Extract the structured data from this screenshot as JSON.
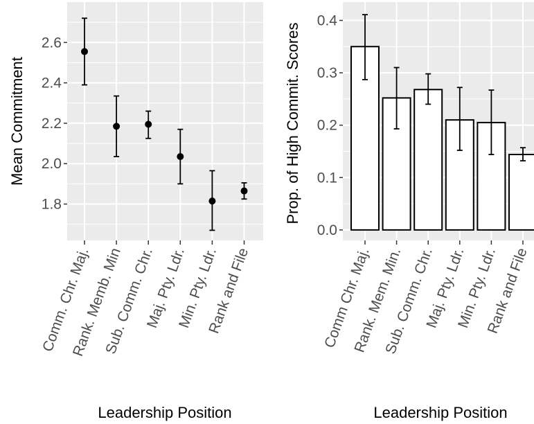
{
  "chart_data": [
    {
      "type": "scatter",
      "xlabel": "Leadership Position",
      "ylabel": "Mean Commitment",
      "categories": [
        "Comm. Chr. Maj.",
        "Rank. Memb. Min",
        "Sub. Comm. Chr.",
        "Maj. Pty. Ldr.",
        "Min. Pty. Ldr.",
        "Rank and File"
      ],
      "values": [
        2.555,
        2.185,
        2.195,
        2.035,
        1.815,
        1.865
      ],
      "error_low": [
        2.39,
        2.035,
        2.125,
        1.9,
        1.67,
        1.825
      ],
      "error_high": [
        2.72,
        2.335,
        2.26,
        2.17,
        1.965,
        1.905
      ],
      "yticks": [
        1.8,
        2.0,
        2.2,
        2.4,
        2.6
      ],
      "ytick_labels": [
        "1.8",
        "2.0",
        "2.2",
        "2.4",
        "2.6"
      ],
      "ylim": [
        1.62,
        2.8
      ],
      "grid": true,
      "point_color": "#000000",
      "panel_color": "#ebebeb"
    },
    {
      "type": "bar",
      "xlabel": "Leadership Position",
      "ylabel": "Prop. of High Commit. Scores",
      "categories": [
        "Comm Chr. Maj.",
        "Rank. Mem. Min.",
        "Sub. Comm. Chr.",
        "Maj. Pty. Ldr.",
        "Min. Pty. Ldr.",
        "Rank and File"
      ],
      "values": [
        0.35,
        0.252,
        0.268,
        0.21,
        0.205,
        0.144
      ],
      "error_low": [
        0.287,
        0.193,
        0.24,
        0.152,
        0.144,
        0.132
      ],
      "error_high": [
        0.411,
        0.31,
        0.298,
        0.272,
        0.267,
        0.157
      ],
      "yticks": [
        0.0,
        0.1,
        0.2,
        0.3,
        0.4
      ],
      "ytick_labels": [
        "0.0",
        "0.1",
        "0.2",
        "0.3",
        "0.4"
      ],
      "ylim": [
        -0.02,
        0.435
      ],
      "grid": true,
      "bar_fill": "#ffffff",
      "bar_outline": "#000000",
      "panel_color": "#ebebeb"
    }
  ]
}
